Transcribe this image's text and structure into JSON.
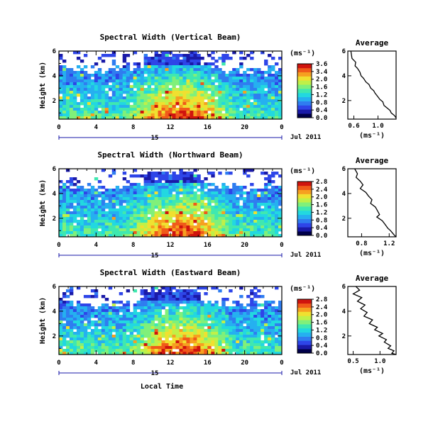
{
  "figure": {
    "xlabel": "Local Time",
    "date_label": "Jul 2011",
    "day_label": "15",
    "colorbar_unit": "(ms⁻¹)",
    "profile_title": "Average",
    "profile_unit": "(ms⁻¹)"
  },
  "palette": [
    "#00004a",
    "#1a1aa8",
    "#2e45e8",
    "#2f7df0",
    "#25b0f0",
    "#22d8e0",
    "#3fe8b0",
    "#80f07a",
    "#c0f048",
    "#f0e030",
    "#f6a020",
    "#f05a1a",
    "#d0140e"
  ],
  "chart_data": [
    {
      "type": "heatmap",
      "title": "Spectral Width (Vertical Beam)",
      "ylabel": "Height (km)",
      "xlim": [
        0,
        24
      ],
      "ylim": [
        0.5,
        6
      ],
      "x_ticks": [
        "0",
        "4",
        "8",
        "12",
        "16",
        "20",
        "0"
      ],
      "y_ticks": [
        "6",
        "4",
        "2"
      ],
      "colorbar": {
        "min": 0.0,
        "max": 3.6,
        "ticks": [
          "3.6",
          "3.4",
          "2.0",
          "1.6",
          "1.2",
          "0.8",
          "0.4",
          "0.0"
        ]
      },
      "profile": {
        "type": "line",
        "x_ticks": [
          "0.6",
          "1.0"
        ],
        "xlim": [
          0.5,
          1.3
        ],
        "y_ticks": [
          "6",
          "4",
          "2"
        ],
        "ylim": [
          0.5,
          6
        ],
        "x": [
          0.55,
          0.57,
          0.63,
          0.62,
          0.66,
          0.7,
          0.72,
          0.76,
          0.8,
          0.85,
          0.88,
          0.93,
          0.95,
          1.0,
          1.03,
          1.08,
          1.1,
          1.15,
          1.2,
          1.22,
          1.27,
          1.3
        ],
        "y": [
          6.0,
          5.4,
          5.1,
          4.8,
          4.6,
          4.3,
          4.0,
          3.8,
          3.5,
          3.3,
          3.0,
          2.8,
          2.6,
          2.3,
          2.1,
          1.9,
          1.6,
          1.4,
          1.2,
          1.0,
          0.8,
          0.6
        ]
      }
    },
    {
      "type": "heatmap",
      "title": "Spectral Width (Northward Beam)",
      "ylabel": "Height (km)",
      "xlim": [
        0,
        24
      ],
      "ylim": [
        0.5,
        6
      ],
      "x_ticks": [
        "0",
        "4",
        "8",
        "12",
        "16",
        "20",
        "0"
      ],
      "y_ticks": [
        "6",
        "4",
        "2"
      ],
      "colorbar": {
        "min": 0.0,
        "max": 2.8,
        "ticks": [
          "2.8",
          "2.4",
          "2.0",
          "1.6",
          "1.2",
          "0.8",
          "0.4",
          "0.0"
        ]
      },
      "profile": {
        "type": "line",
        "x_ticks": [
          "0.8",
          "1.2"
        ],
        "xlim": [
          0.6,
          1.3
        ],
        "y_ticks": [
          "6",
          "4",
          "2"
        ],
        "ylim": [
          0.5,
          6
        ],
        "x": [
          0.7,
          0.74,
          0.72,
          0.78,
          0.82,
          0.78,
          0.86,
          0.9,
          0.95,
          0.93,
          1.0,
          1.03,
          1.06,
          1.02,
          1.1,
          1.14,
          1.18,
          1.22,
          1.25,
          1.28,
          1.3
        ],
        "y": [
          6.0,
          5.6,
          5.3,
          5.0,
          4.7,
          4.4,
          4.1,
          3.8,
          3.5,
          3.2,
          2.9,
          2.6,
          2.3,
          2.1,
          1.8,
          1.5,
          1.2,
          1.0,
          0.8,
          0.6,
          0.5
        ]
      }
    },
    {
      "type": "heatmap",
      "title": "Spectral Width (Eastward Beam)",
      "ylabel": "Height (km)",
      "xlim": [
        0,
        24
      ],
      "ylim": [
        0.5,
        6
      ],
      "x_ticks": [
        "0",
        "4",
        "8",
        "12",
        "16",
        "20",
        "0"
      ],
      "y_ticks": [
        "6",
        "4",
        "2"
      ],
      "colorbar": {
        "min": 0.0,
        "max": 2.8,
        "ticks": [
          "2.8",
          "2.4",
          "2.0",
          "1.6",
          "1.2",
          "0.8",
          "0.4",
          "0.0"
        ]
      },
      "profile": {
        "type": "line",
        "x_ticks": [
          "0.5",
          "1.0"
        ],
        "xlim": [
          0.4,
          1.3
        ],
        "y_ticks": [
          "6",
          "4",
          "2"
        ],
        "ylim": [
          0.5,
          6
        ],
        "x": [
          0.55,
          0.62,
          0.5,
          0.66,
          0.58,
          0.72,
          0.64,
          0.76,
          0.7,
          0.86,
          0.8,
          0.95,
          0.9,
          1.05,
          0.98,
          1.12,
          1.08,
          1.2,
          1.15,
          1.26,
          1.22,
          1.3
        ],
        "y": [
          6.0,
          5.7,
          5.4,
          5.1,
          4.8,
          4.5,
          4.2,
          3.9,
          3.6,
          3.3,
          3.0,
          2.7,
          2.5,
          2.2,
          2.0,
          1.7,
          1.5,
          1.2,
          1.0,
          0.8,
          0.6,
          0.5
        ]
      }
    }
  ]
}
